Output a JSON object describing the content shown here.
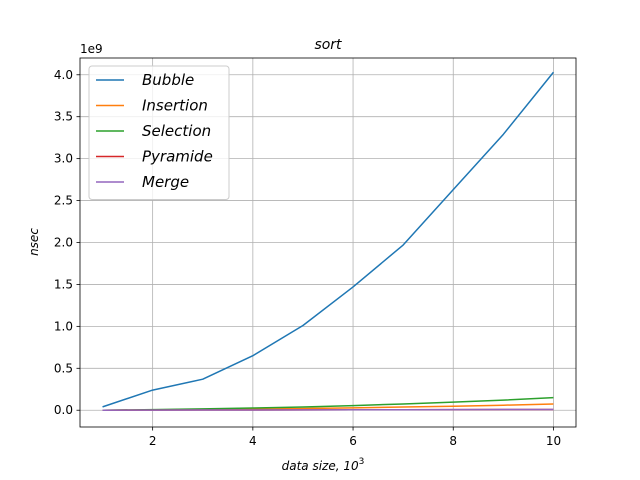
{
  "chart_data": {
    "type": "line",
    "title": "sort",
    "xlabel": "data size, 10",
    "xlabel_exp": "3",
    "ylabel": "nsec",
    "y_offset_label": "1e9",
    "xlim": [
      0.55,
      10.45
    ],
    "ylim": [
      -0.2,
      4.2
    ],
    "x_ticks": [
      2,
      4,
      6,
      8,
      10
    ],
    "x_tick_labels": [
      "2",
      "4",
      "6",
      "8",
      "10"
    ],
    "y_ticks": [
      0.0,
      0.5,
      1.0,
      1.5,
      2.0,
      2.5,
      3.0,
      3.5,
      4.0
    ],
    "y_tick_labels": [
      "0.0",
      "0.5",
      "1.0",
      "1.5",
      "2.0",
      "2.5",
      "3.0",
      "3.5",
      "4.0"
    ],
    "grid": true,
    "legend_position": "upper-left",
    "x": [
      1,
      2,
      3,
      4,
      5,
      6,
      7,
      8,
      9,
      10
    ],
    "series": [
      {
        "name": "Bubble",
        "color": "#1f77b4",
        "values": [
          0.04,
          0.24,
          0.37,
          0.65,
          1.01,
          1.47,
          1.97,
          2.63,
          3.29,
          4.03
        ]
      },
      {
        "name": "Insertion",
        "color": "#ff7f0e",
        "values": [
          0.0,
          0.004,
          0.008,
          0.013,
          0.02,
          0.028,
          0.038,
          0.048,
          0.06,
          0.075
        ]
      },
      {
        "name": "Selection",
        "color": "#2ca02c",
        "values": [
          0.0,
          0.007,
          0.016,
          0.026,
          0.038,
          0.055,
          0.075,
          0.097,
          0.12,
          0.15
        ]
      },
      {
        "name": "Pyramide",
        "color": "#d62728",
        "values": [
          0.0,
          0.001,
          0.002,
          0.003,
          0.004,
          0.005,
          0.006,
          0.007,
          0.008,
          0.009
        ]
      },
      {
        "name": "Merge",
        "color": "#9467bd",
        "values": [
          0.0,
          0.001,
          0.002,
          0.003,
          0.004,
          0.005,
          0.006,
          0.007,
          0.008,
          0.009
        ]
      }
    ]
  }
}
